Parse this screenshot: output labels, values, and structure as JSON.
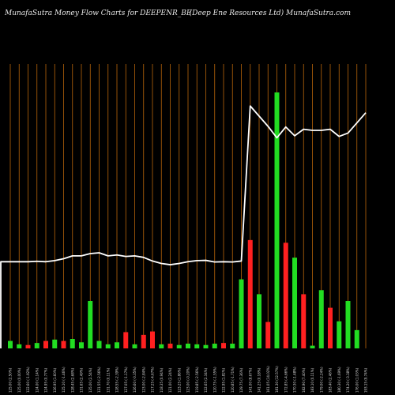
{
  "header": {
    "left_title": "MunafaSutra  Money Flow  Charts for DEEPENR_BE",
    "right_title": "(Deep Ene    Resources Ltd) MunafaSutra.com"
  },
  "colors": {
    "background": "#000000",
    "grid": "#b8650a",
    "line": "#ffffff",
    "up": "#22dd22",
    "down": "#ff2020"
  },
  "chart_data": {
    "type": "bar",
    "title": "",
    "grid": true,
    "tick_labels": [
      "125.00 (2.50%)",
      "125.00 (0.00%)",
      "122.60 (-1.92%)",
      "124.00 (1.14%)",
      "124.95 (0.77%)",
      "126.95 (1.60%)",
      "125.10 (-1.46%)",
      "128.45 (2.68%)",
      "131.65 (2.49%)",
      "135.00 (2.54%)",
      "131.55 (-2.56%)",
      "131.70 (0.11%)",
      "128.55 (-2.39%)",
      "127.05 (-1.17%)",
      "126.60 (-0.35%)",
      "123.00 (-2.84%)",
      "117.25 (-4.67%)",
      "118.35 (0.94%)",
      "121.00 (2.24%)",
      "123.25 (1.86%)",
      "123.00 (-0.20%)",
      "119.85 (-2.56%)",
      "122.65 (2.34%)",
      "120.75 (-1.55%)",
      "122.95 (1.82%)",
      "120.85 (-1.71%)",
      "129.75 (7.36%)",
      "141.00 (8.67%)",
      "141.25 (0.18%)",
      "161.05 (14.02%)",
      "181.30 (12.57%)",
      "172.85 (-4.66%)",
      "170.30 (-1.48%)",
      "182.90 (7.40%)",
      "183.10 (0.11%)",
      "179.00 (-2.24%)",
      "183.40 (2.46%)",
      "180.30 (-1.69%)",
      "174.20 (-3.38%)",
      "176.00 (1.03%)",
      "193.15 (9.74%)"
    ],
    "line": [
      64,
      64,
      64,
      64.3,
      64,
      64.8,
      66.2,
      68.3,
      68.3,
      70,
      70.6,
      68.3,
      69,
      67.9,
      68.3,
      67.2,
      64.5,
      62.7,
      61.8,
      62.7,
      64,
      64.8,
      65,
      63.8,
      64,
      63.8,
      64.5,
      179,
      171.5,
      164,
      155.5,
      163.5,
      157,
      161.8,
      161,
      161,
      161.8,
      156.5,
      159,
      166.5,
      174
    ],
    "bars": [
      5.5,
      3,
      2.5,
      4,
      5.5,
      6.5,
      5.5,
      7,
      4.5,
      35,
      5.5,
      3,
      4.5,
      12,
      3,
      10,
      12.5,
      3,
      3.5,
      2.5,
      3.5,
      3,
      2.5,
      3.5,
      4,
      3.5,
      51,
      80,
      40,
      19.5,
      189,
      78,
      67,
      40,
      2,
      43,
      30,
      20,
      35,
      13.5,
      0
    ],
    "directions": [
      "up",
      "up",
      "down",
      "up",
      "down",
      "up",
      "down",
      "up",
      "up",
      "up",
      "up",
      "up",
      "up",
      "down",
      "up",
      "down",
      "down",
      "up",
      "down",
      "up",
      "up",
      "up",
      "up",
      "up",
      "down",
      "up",
      "up",
      "down",
      "up",
      "down",
      "up",
      "down",
      "up",
      "down",
      "up",
      "up",
      "down",
      "up",
      "up",
      "up",
      "up"
    ],
    "ylim": [
      0,
      210
    ],
    "line_ylim": [
      0,
      210
    ]
  }
}
